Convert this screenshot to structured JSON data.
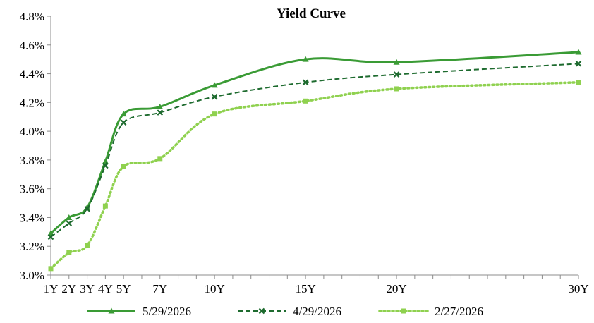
{
  "chart_data": {
    "type": "line",
    "title": "Yield Curve",
    "xlabel": "",
    "ylabel": "",
    "x_tick_labels": [
      "1Y",
      "2Y",
      "3Y",
      "4Y",
      "5Y",
      "7Y",
      "10Y",
      "15Y",
      "20Y",
      "30Y"
    ],
    "x_tick_positions": [
      1,
      2,
      3,
      4,
      5,
      7,
      10,
      15,
      20,
      30
    ],
    "xlim": [
      1,
      30
    ],
    "ylim": [
      3.0,
      4.8
    ],
    "y_ticks": [
      3.0,
      3.2,
      3.4,
      3.6,
      3.8,
      4.0,
      4.2,
      4.4,
      4.6,
      4.8
    ],
    "y_tick_labels": [
      "3.0%",
      "3.2%",
      "3.4%",
      "3.6%",
      "3.8%",
      "4.0%",
      "4.2%",
      "4.4%",
      "4.6%",
      "4.8%"
    ],
    "grid": false,
    "legend_position": "bottom",
    "series": [
      {
        "name": "5/29/2026",
        "color": "#3a9b35",
        "line_style": "solid",
        "marker": "triangle",
        "x": [
          1,
          2,
          3,
          4,
          5,
          7,
          10,
          15,
          20,
          30
        ],
        "y": [
          3.29,
          3.4,
          3.47,
          3.79,
          4.12,
          4.17,
          4.32,
          4.5,
          4.48,
          4.55
        ]
      },
      {
        "name": "4/29/2026",
        "color": "#1e6b2f",
        "line_style": "dashed",
        "marker": "x",
        "x": [
          1,
          2,
          3,
          4,
          5,
          7,
          10,
          15,
          20,
          30
        ],
        "y": [
          3.265,
          3.36,
          3.46,
          3.76,
          4.06,
          4.13,
          4.24,
          4.34,
          4.395,
          4.47
        ]
      },
      {
        "name": "2/27/2026",
        "color": "#8fd14f",
        "line_style": "dotted",
        "marker": "square",
        "x": [
          1,
          2,
          3,
          4,
          5,
          7,
          10,
          15,
          20,
          30
        ],
        "y": [
          3.045,
          3.155,
          3.205,
          3.48,
          3.755,
          3.81,
          4.12,
          4.21,
          4.295,
          4.34
        ]
      }
    ]
  }
}
